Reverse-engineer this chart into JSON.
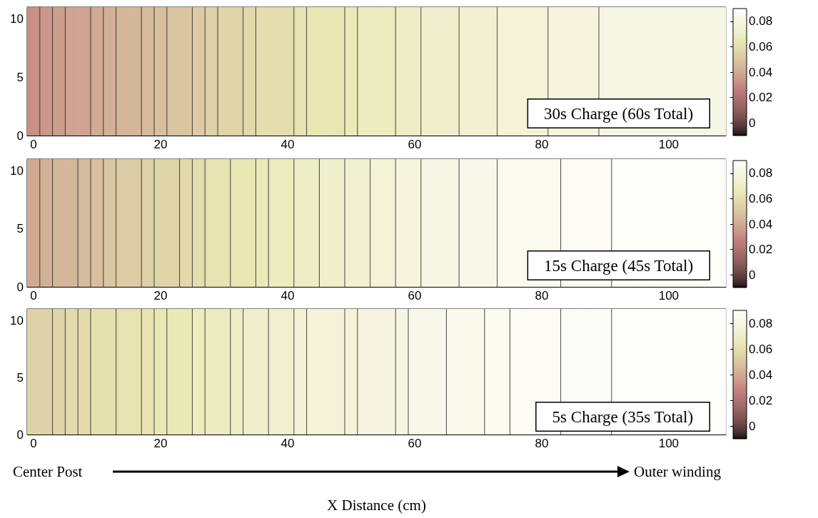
{
  "chart_data": [
    {
      "type": "heatmap",
      "categories": [
        "0",
        null,
        null,
        null,
        null,
        null,
        null,
        null,
        null,
        null,
        "20",
        null,
        null,
        null,
        null,
        null,
        null,
        null,
        null,
        null,
        "40",
        null,
        null,
        null,
        null,
        null,
        null,
        null,
        null,
        null,
        "60",
        null,
        null,
        null,
        null,
        null,
        null,
        null,
        null,
        null,
        "80",
        null,
        null,
        null,
        null,
        null,
        null,
        null,
        null,
        null,
        "100",
        null,
        null,
        null,
        null
      ],
      "cells": [
        [
          0.032,
          0.034,
          0.036,
          0.038,
          0.038,
          0.04,
          0.042,
          0.044,
          0.044,
          0.046,
          0.048,
          0.05,
          0.05,
          0.052,
          0.054,
          0.056,
          0.056,
          0.058,
          0.06,
          0.06,
          0.06,
          0.062,
          0.064,
          0.064,
          0.064,
          0.066,
          0.068,
          0.068,
          0.068,
          0.07,
          0.07,
          0.072,
          0.072,
          0.072,
          0.074,
          0.074,
          0.074,
          0.076,
          0.076,
          0.076,
          0.076,
          0.078,
          0.078,
          0.078,
          0.078,
          0.08,
          0.08,
          0.08,
          0.08,
          0.08,
          0.08,
          0.08,
          0.08,
          0.08,
          0.08
        ]
      ],
      "ylim": [
        0,
        11
      ],
      "yticks": [
        0,
        5,
        10
      ],
      "clim": [
        -0.01,
        0.09
      ],
      "cticks": [
        0,
        0.02,
        0.04,
        0.06,
        0.08
      ],
      "annotations": [
        "30s Charge (60s Total)"
      ]
    },
    {
      "type": "heatmap",
      "categories": [
        "0",
        null,
        null,
        null,
        null,
        null,
        null,
        null,
        null,
        null,
        "20",
        null,
        null,
        null,
        null,
        null,
        null,
        null,
        null,
        null,
        "40",
        null,
        null,
        null,
        null,
        null,
        null,
        null,
        null,
        null,
        "60",
        null,
        null,
        null,
        null,
        null,
        null,
        null,
        null,
        null,
        "80",
        null,
        null,
        null,
        null,
        null,
        null,
        null,
        null,
        null,
        "100",
        null,
        null,
        null,
        null
      ],
      "cells": [
        [
          0.04,
          0.042,
          0.044,
          0.044,
          0.046,
          0.048,
          0.05,
          0.052,
          0.052,
          0.054,
          0.056,
          0.056,
          0.058,
          0.06,
          0.062,
          0.062,
          0.064,
          0.064,
          0.066,
          0.068,
          0.068,
          0.07,
          0.07,
          0.072,
          0.072,
          0.074,
          0.074,
          0.076,
          0.076,
          0.078,
          0.078,
          0.08,
          0.08,
          0.08,
          0.082,
          0.082,
          0.082,
          0.084,
          0.084,
          0.084,
          0.084,
          0.084,
          0.086,
          0.086,
          0.086,
          0.086,
          0.088,
          0.088,
          0.088,
          0.088,
          0.088,
          0.088,
          0.088,
          0.088,
          0.088
        ]
      ],
      "ylim": [
        0,
        11
      ],
      "yticks": [
        0,
        5,
        10
      ],
      "clim": [
        -0.01,
        0.09
      ],
      "cticks": [
        0,
        0.02,
        0.04,
        0.06,
        0.08
      ],
      "annotations": [
        "15s Charge (45s Total)"
      ]
    },
    {
      "type": "heatmap",
      "categories": [
        "0",
        null,
        null,
        null,
        null,
        null,
        null,
        null,
        null,
        null,
        "20",
        null,
        null,
        null,
        null,
        null,
        null,
        null,
        null,
        null,
        "40",
        null,
        null,
        null,
        null,
        null,
        null,
        null,
        null,
        null,
        "60",
        null,
        null,
        null,
        null,
        null,
        null,
        null,
        null,
        null,
        "80",
        null,
        null,
        null,
        null,
        null,
        null,
        null,
        null,
        null,
        "100",
        null,
        null,
        null,
        null
      ],
      "cells": [
        [
          0.055,
          0.055,
          0.056,
          0.058,
          0.059,
          0.061,
          0.061,
          0.062,
          0.062,
          0.063,
          0.065,
          0.066,
          0.066,
          0.068,
          0.069,
          0.069,
          0.07,
          0.072,
          0.072,
          0.073,
          0.073,
          0.075,
          0.076,
          0.076,
          0.076,
          0.077,
          0.079,
          0.079,
          0.079,
          0.08,
          0.082,
          0.082,
          0.082,
          0.083,
          0.083,
          0.083,
          0.084,
          0.084,
          0.086,
          0.086,
          0.086,
          0.086,
          0.087,
          0.087,
          0.087,
          0.087,
          0.089,
          0.089,
          0.089,
          0.089,
          0.089,
          0.089,
          0.089,
          0.089,
          0.089
        ]
      ],
      "ylim": [
        0,
        11
      ],
      "yticks": [
        0,
        5,
        10
      ],
      "clim": [
        -0.01,
        0.09
      ],
      "cticks": [
        0,
        0.02,
        0.04,
        0.06,
        0.08
      ],
      "xlabel": "X Distance (cm)",
      "annotations": [
        "5s Charge (35s Total)",
        "Center Post",
        "Outer winding"
      ]
    }
  ]
}
